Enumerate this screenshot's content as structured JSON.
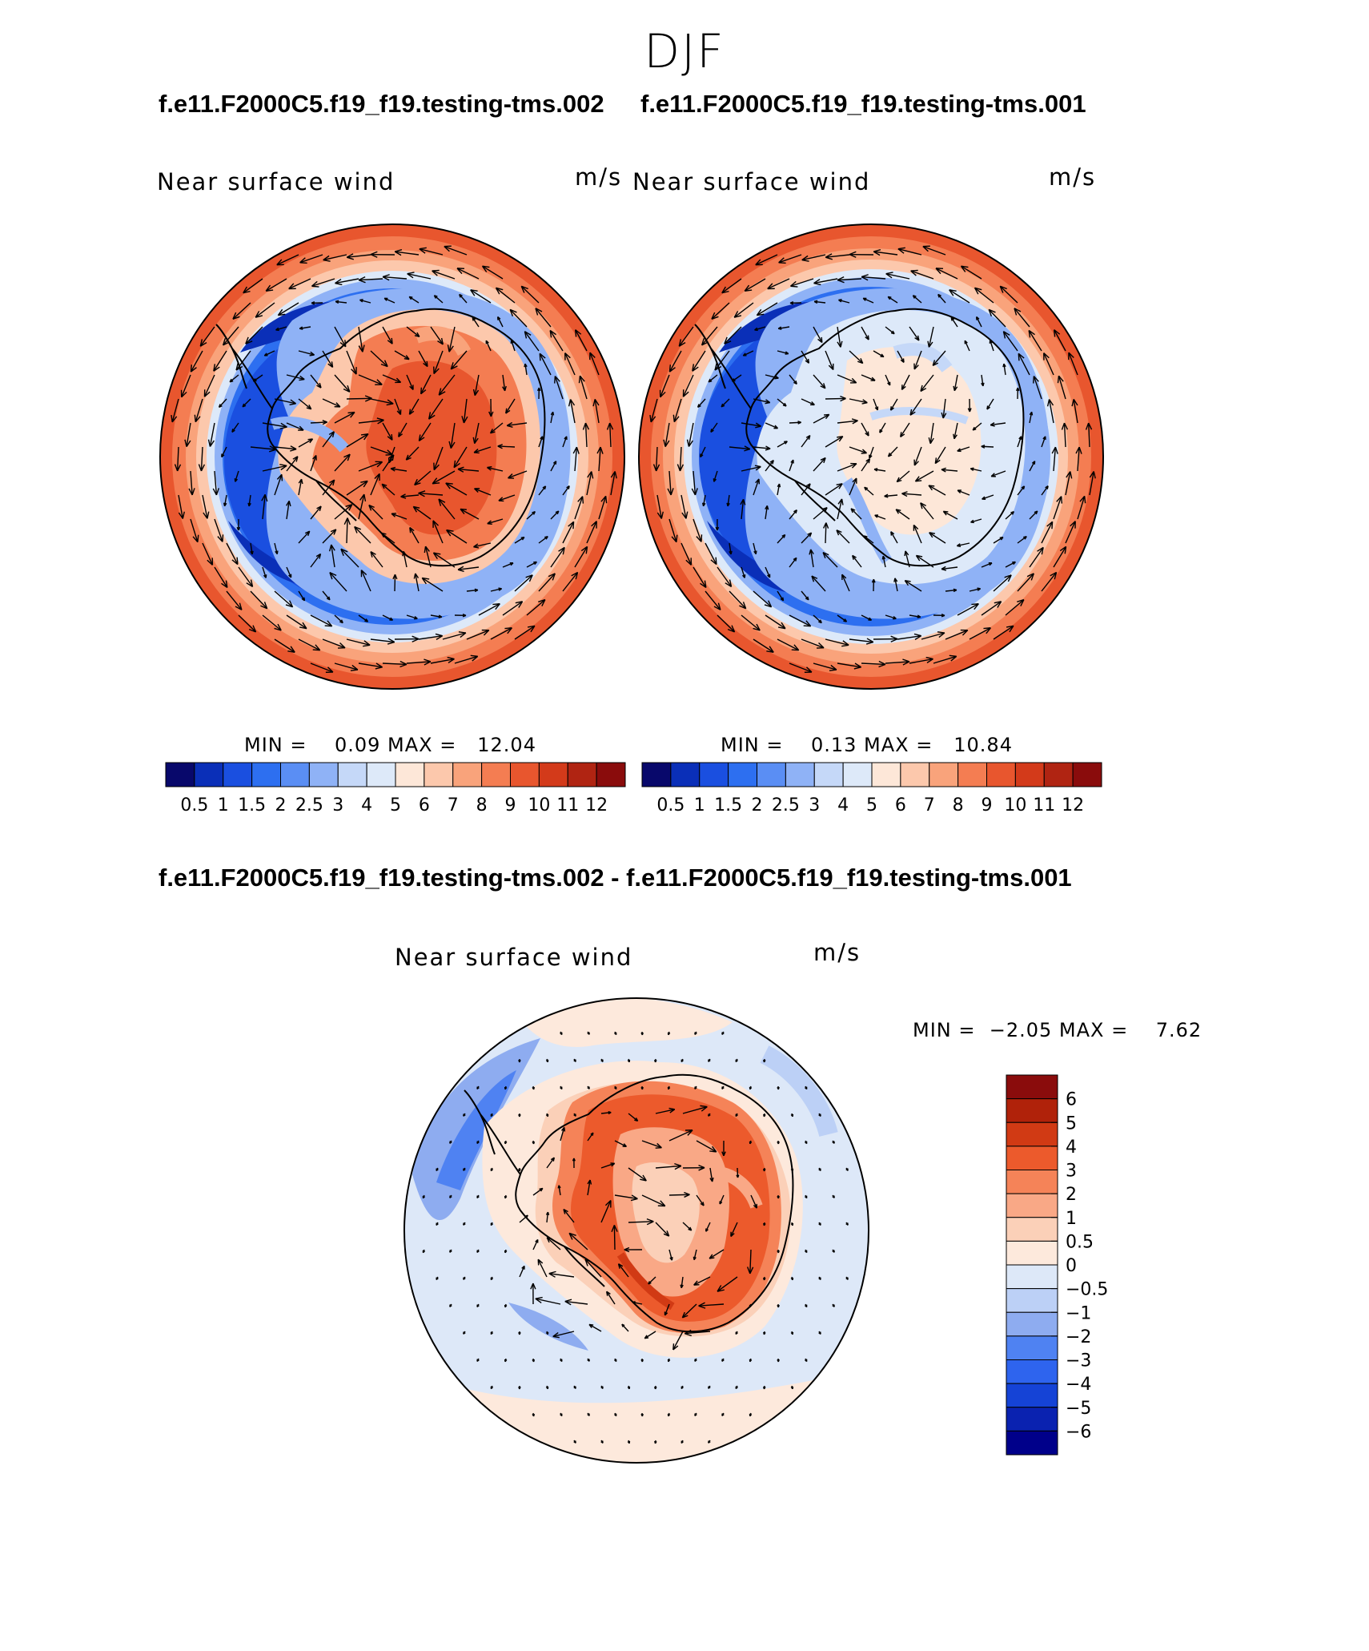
{
  "figure_title": "DJF",
  "cases": {
    "test": "f.e11.F2000C5.f19_f19.testing-tms.002",
    "control": "f.e11.F2000C5.f19_f19.testing-tms.001",
    "diff": "f.e11.F2000C5.f19_f19.testing-tms.002 - f.e11.F2000C5.f19_f19.testing-tms.001"
  },
  "panels": {
    "test": {
      "title": "Near surface wind",
      "units": "m/s",
      "minmax": "MIN =    0.09 MAX =   12.04"
    },
    "control": {
      "title": "Near surface wind",
      "units": "m/s",
      "minmax": "MIN =    0.13 MAX =   10.84"
    },
    "diff": {
      "title": "Near surface wind",
      "units": "m/s",
      "minmax": "MIN =  −2.05 MAX =    7.62"
    }
  },
  "colors": {
    "abs_scale": [
      "#08086b",
      "#0a2fb8",
      "#1a4fe0",
      "#2d6ff0",
      "#5a8ef4",
      "#8fb2f6",
      "#c5d8f8",
      "#dde9f9",
      "#fde7d8",
      "#fcc8ac",
      "#f9a37b",
      "#f47d52",
      "#e8562e",
      "#d33a1a",
      "#b02412",
      "#8a0c0c"
    ],
    "diff_scale": [
      "#00008a",
      "#0a22b0",
      "#1543d6",
      "#2e64ee",
      "#4f82f2",
      "#8eacf0",
      "#bcd0f6",
      "#dde8f8",
      "#fde9dc",
      "#fbd0b8",
      "#f9a886",
      "#f58358",
      "#ec5a2c",
      "#d13a14",
      "#b0220a",
      "#8a0c0c"
    ],
    "land_outline": "#000000"
  },
  "chart_data": [
    {
      "type": "heatmap",
      "projection": "south-polar-stereographic",
      "title": "Near surface wind",
      "units": "m/s",
      "case": "f.e11.F2000C5.f19_f19.testing-tms.002",
      "min": 0.09,
      "max": 12.04,
      "contour_levels": [
        0.5,
        1,
        1.5,
        2,
        2.5,
        3,
        4,
        5,
        6,
        7,
        8,
        9,
        10,
        11,
        12
      ],
      "colorbar_labels": [
        "0.5",
        "1",
        "1.5",
        "2",
        "2.5",
        "3",
        "4",
        "5",
        "6",
        "7",
        "8",
        "9",
        "10",
        "11",
        "12"
      ],
      "vectors": "wind vectors overlaid",
      "colorbar_position": "bottom"
    },
    {
      "type": "heatmap",
      "projection": "south-polar-stereographic",
      "title": "Near surface wind",
      "units": "m/s",
      "case": "f.e11.F2000C5.f19_f19.testing-tms.001",
      "min": 0.13,
      "max": 10.84,
      "contour_levels": [
        0.5,
        1,
        1.5,
        2,
        2.5,
        3,
        4,
        5,
        6,
        7,
        8,
        9,
        10,
        11,
        12
      ],
      "colorbar_labels": [
        "0.5",
        "1",
        "1.5",
        "2",
        "2.5",
        "3",
        "4",
        "5",
        "6",
        "7",
        "8",
        "9",
        "10",
        "11",
        "12"
      ],
      "vectors": "wind vectors overlaid",
      "colorbar_position": "bottom"
    },
    {
      "type": "heatmap",
      "projection": "south-polar-stereographic",
      "title": "Near surface wind",
      "units": "m/s",
      "case": "f.e11.F2000C5.f19_f19.testing-tms.002 - f.e11.F2000C5.f19_f19.testing-tms.001",
      "min": -2.05,
      "max": 7.62,
      "contour_levels": [
        -6,
        -5,
        -4,
        -3,
        -2,
        -1,
        -0.5,
        0,
        0.5,
        1,
        2,
        3,
        4,
        5,
        6
      ],
      "colorbar_labels": [
        "6",
        "5",
        "4",
        "3",
        "2",
        "1",
        "0.5",
        "0",
        "−0.5",
        "−1",
        "−2",
        "−3",
        "−4",
        "−5",
        "−6"
      ],
      "vectors": "wind difference vectors overlaid",
      "colorbar_position": "right"
    }
  ]
}
